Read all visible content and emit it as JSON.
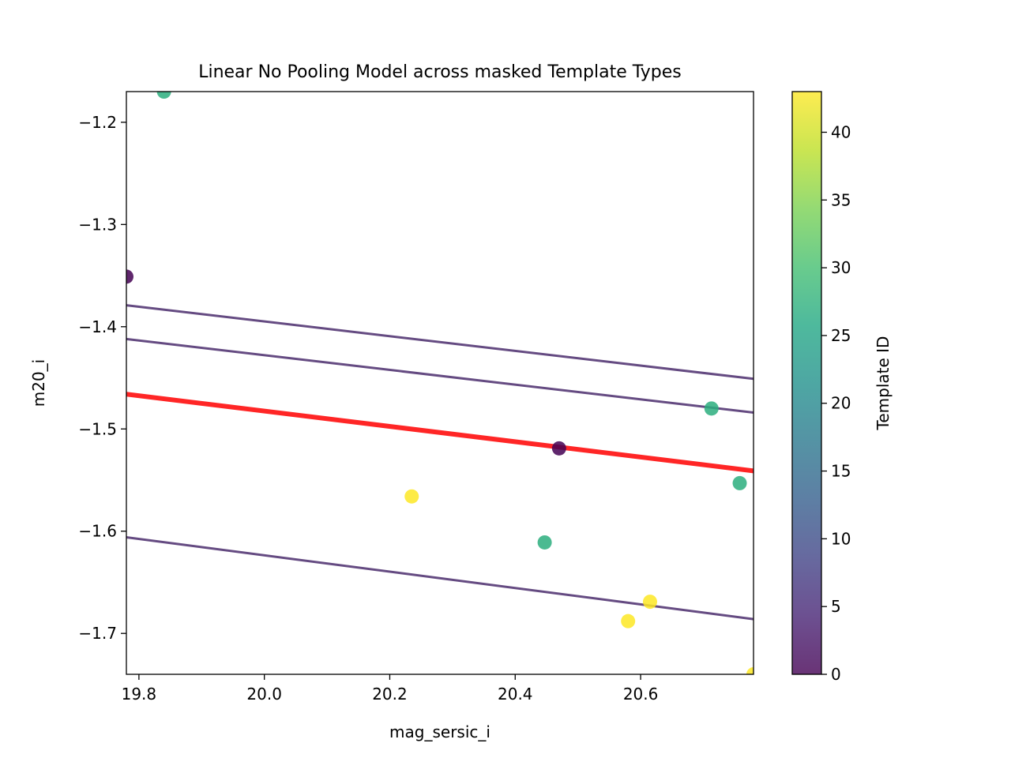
{
  "chart_data": {
    "type": "scatter",
    "title": "Linear No Pooling Model across masked Template Types",
    "xlabel": "mag_sersic_i",
    "ylabel": "m20_i",
    "xlim": [
      19.78,
      20.78
    ],
    "ylim": [
      -1.74,
      -1.17
    ],
    "xticks": [
      19.8,
      20.0,
      20.2,
      20.4,
      20.6
    ],
    "xtick_labels": [
      "19.8",
      "20.0",
      "20.2",
      "20.4",
      "20.6"
    ],
    "yticks": [
      -1.2,
      -1.3,
      -1.4,
      -1.5,
      -1.6,
      -1.7
    ],
    "ytick_labels": [
      "−1.2",
      "−1.3",
      "−1.4",
      "−1.5",
      "−1.6",
      "−1.7"
    ],
    "grid": false,
    "points": [
      {
        "x": 19.84,
        "y": -1.17,
        "template_id": 27
      },
      {
        "x": 19.78,
        "y": -1.351,
        "template_id": 0
      },
      {
        "x": 20.47,
        "y": -1.519,
        "template_id": 0
      },
      {
        "x": 20.235,
        "y": -1.566,
        "template_id": 43
      },
      {
        "x": 20.447,
        "y": -1.611,
        "template_id": 27
      },
      {
        "x": 20.713,
        "y": -1.48,
        "template_id": 27
      },
      {
        "x": 20.758,
        "y": -1.553,
        "template_id": 27
      },
      {
        "x": 20.58,
        "y": -1.688,
        "template_id": 43
      },
      {
        "x": 20.615,
        "y": -1.669,
        "template_id": 43
      },
      {
        "x": 20.78,
        "y": -1.74,
        "template_id": 43
      }
    ],
    "fit_lines": [
      {
        "x": [
          19.78,
          20.78
        ],
        "y": [
          -1.379,
          -1.451
        ],
        "color": "#3f1e63",
        "kind": "group"
      },
      {
        "x": [
          19.78,
          20.78
        ],
        "y": [
          -1.412,
          -1.484
        ],
        "color": "#3f1e63",
        "kind": "group"
      },
      {
        "x": [
          19.78,
          20.78
        ],
        "y": [
          -1.606,
          -1.686
        ],
        "color": "#3f1e63",
        "kind": "group"
      },
      {
        "x": [
          19.78,
          20.78
        ],
        "y": [
          -1.466,
          -1.541
        ],
        "color": "#ff1a1a",
        "kind": "pooled"
      }
    ],
    "colorbar": {
      "label": "Template ID",
      "colormap": "viridis",
      "range": [
        0,
        43
      ],
      "ticks": [
        0,
        5,
        10,
        15,
        20,
        25,
        30,
        35,
        40
      ],
      "tick_labels": [
        "0",
        "5",
        "10",
        "15",
        "20",
        "25",
        "30",
        "35",
        "40"
      ]
    }
  }
}
